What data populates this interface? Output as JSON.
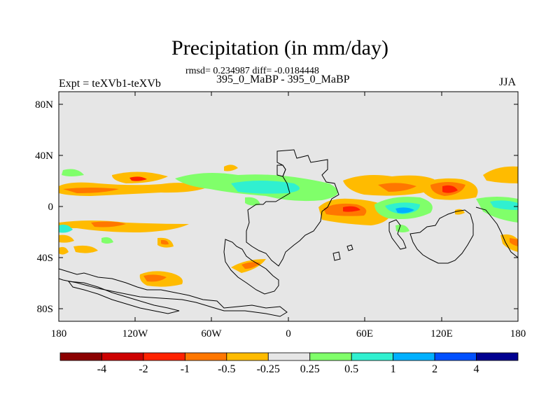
{
  "title": "Precipitation (in mm/day)",
  "stats_line": "rmsd= 0.234987 diff= -0.0184448",
  "experiment_label": "Expt = teXVb1-teXVb",
  "case_label": "395_0_MaBP - 395_0_MaBP",
  "season_label": "JJA",
  "lat_labels": [
    "80N",
    "40N",
    "0",
    "40S",
    "80S"
  ],
  "lon_labels": [
    "180",
    "120W",
    "60W",
    "0",
    "60E",
    "120E",
    "180"
  ],
  "colorbar": {
    "labels": [
      "-4",
      "-2",
      "-1",
      "-0.5",
      "-0.25",
      "0.25",
      "0.5",
      "1",
      "2",
      "4"
    ],
    "colors": [
      "#8b0000",
      "#cd0000",
      "#ff2200",
      "#ff7700",
      "#ffbb00",
      "#e6e6e6",
      "#80ff6a",
      "#30f0d0",
      "#00b0ff",
      "#0050ff",
      "#000090"
    ]
  },
  "map": {
    "background_color": "#e6e6e6",
    "coastline_color": "#000000"
  }
}
